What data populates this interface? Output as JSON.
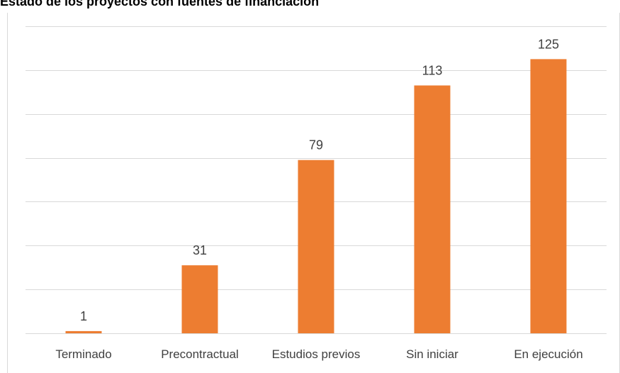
{
  "title": "Estado de los proyectos con fuentes de financiación",
  "chart_data": {
    "type": "bar",
    "categories": [
      "Terminado",
      "Precontractual",
      "Estudios previos",
      "Sin iniciar",
      "En ejecución"
    ],
    "values": [
      1,
      31,
      79,
      113,
      125
    ],
    "data_labels": [
      "1",
      "31",
      "79",
      "113",
      "125"
    ],
    "ylim": [
      0,
      140
    ],
    "grid": true,
    "legend": "none",
    "colors": {
      "bar": "#ed7d31",
      "grid": "#d9d9d9",
      "text": "#404040"
    }
  }
}
